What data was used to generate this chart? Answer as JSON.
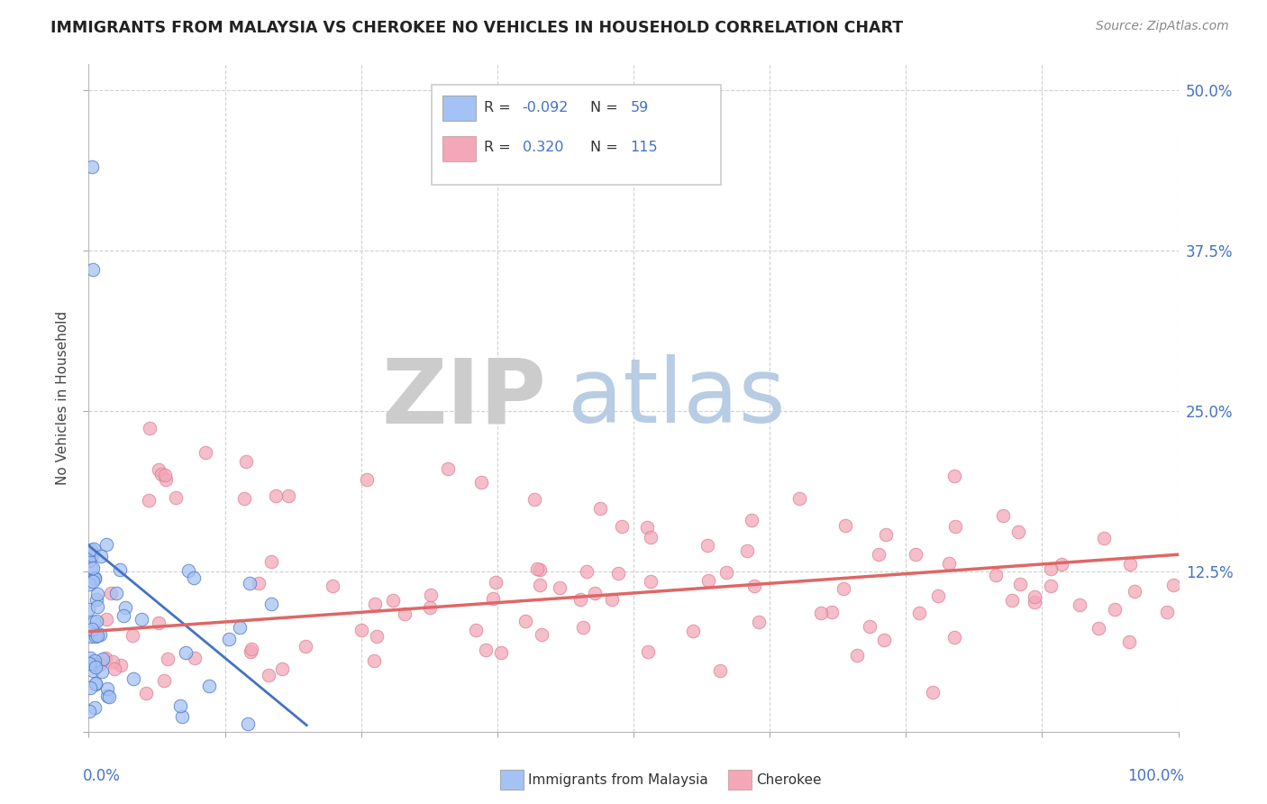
{
  "title": "IMMIGRANTS FROM MALAYSIA VS CHEROKEE NO VEHICLES IN HOUSEHOLD CORRELATION CHART",
  "source_text": "Source: ZipAtlas.com",
  "ylabel": "No Vehicles in Household",
  "color_blue": "#a4c2f4",
  "color_pink": "#f4a7b9",
  "color_blue_line": "#4472c4",
  "color_pink_line": "#e06666",
  "watermark_zip": "ZIP",
  "watermark_atlas": "atlas",
  "watermark_zip_color": "#d0d0d0",
  "watermark_atlas_color": "#b8cce4",
  "xlim": [
    0.0,
    100.0
  ],
  "ylim": [
    0.0,
    52.0
  ],
  "ytick_values": [
    0.0,
    12.5,
    25.0,
    37.5,
    50.0
  ],
  "ytick_labels": [
    "",
    "12.5%",
    "25.0%",
    "37.5%",
    "50.0%"
  ],
  "blue_line_x": [
    0,
    20
  ],
  "blue_line_y": [
    14.5,
    0.5
  ],
  "pink_line_x": [
    0,
    100
  ],
  "pink_line_y": [
    7.8,
    13.8
  ]
}
